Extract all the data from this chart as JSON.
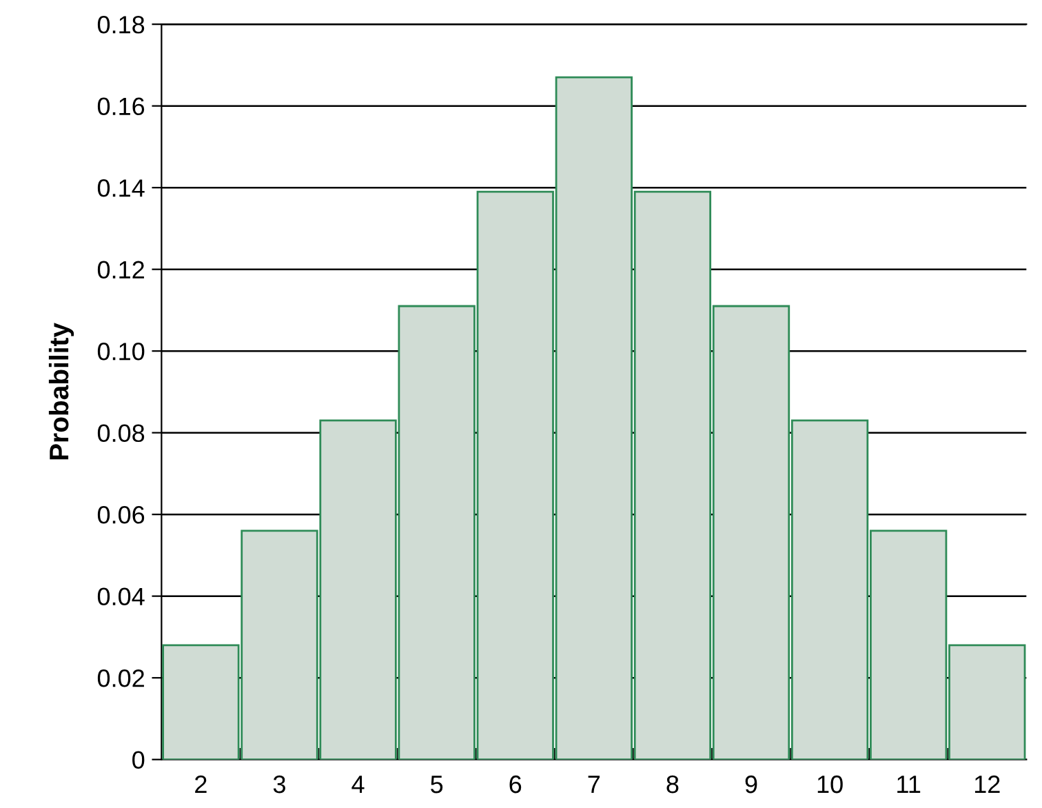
{
  "chart_data": {
    "type": "bar",
    "ylabel": "Probability",
    "categories": [
      "2",
      "3",
      "4",
      "5",
      "6",
      "7",
      "8",
      "9",
      "10",
      "11",
      "12"
    ],
    "values": [
      0.028,
      0.056,
      0.083,
      0.111,
      0.139,
      0.167,
      0.139,
      0.111,
      0.083,
      0.056,
      0.028
    ],
    "color": "#d0dcd4",
    "ylim": [
      0,
      0.18
    ],
    "yticks": [
      0,
      {
        "value": 0.02,
        "label": "0.02"
      },
      {
        "value": 0.04,
        "label": "0.04"
      },
      {
        "value": 0.06,
        "label": "0.06"
      },
      {
        "value": 0.08,
        "label": "0.08"
      },
      {
        "value": 0.1,
        "label": "0.10"
      },
      {
        "value": 0.12,
        "label": "0.12"
      },
      {
        "value": 0.14,
        "label": "0.14"
      },
      {
        "value": 0.16,
        "label": "0.16"
      },
      {
        "value": 0.18,
        "label": "0.18"
      }
    ],
    "grid": "y"
  }
}
